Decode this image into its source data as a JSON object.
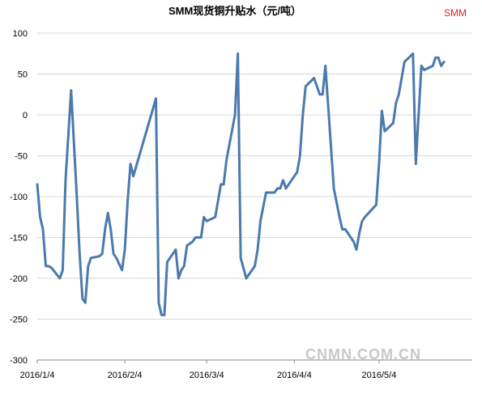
{
  "brand_label": "SMM",
  "watermark": "CNMN.COM.CN",
  "chart_data": {
    "type": "line",
    "title": "SMM现货铜升贴水（元/吨）",
    "xlabel": "",
    "ylabel": "",
    "ylim": [
      -300,
      100
    ],
    "yticks": [
      100,
      50,
      0,
      -50,
      -100,
      -150,
      -200,
      -250,
      -300
    ],
    "xlim": [
      "2016-01-04",
      "2016-06-06"
    ],
    "xticks": [
      "2016/1/4",
      "2016/2/4",
      "2016/3/4",
      "2016/4/4",
      "2016/5/4"
    ],
    "xtick_dates": [
      "2016-01-04",
      "2016-02-04",
      "2016-03-04",
      "2016-04-04",
      "2016-05-04"
    ],
    "grid": true,
    "legend": "none",
    "series_color": "#4a7aae",
    "series": [
      {
        "name": "",
        "points": [
          [
            "2016-01-04",
            -85
          ],
          [
            "2016-01-05",
            -125
          ],
          [
            "2016-01-06",
            -140
          ],
          [
            "2016-01-07",
            -185
          ],
          [
            "2016-01-08",
            -185
          ],
          [
            "2016-01-09",
            -187
          ],
          [
            "2016-01-12",
            -200
          ],
          [
            "2016-01-13",
            -190
          ],
          [
            "2016-01-14",
            -80
          ],
          [
            "2016-01-16",
            30
          ],
          [
            "2016-01-18",
            -100
          ],
          [
            "2016-01-19",
            -170
          ],
          [
            "2016-01-20",
            -225
          ],
          [
            "2016-01-21",
            -230
          ],
          [
            "2016-01-22",
            -185
          ],
          [
            "2016-01-23",
            -175
          ],
          [
            "2016-01-26",
            -173
          ],
          [
            "2016-01-27",
            -170
          ],
          [
            "2016-01-28",
            -140
          ],
          [
            "2016-01-29",
            -120
          ],
          [
            "2016-01-30",
            -140
          ],
          [
            "2016-01-31",
            -170
          ],
          [
            "2016-02-01",
            -175
          ],
          [
            "2016-02-03",
            -190
          ],
          [
            "2016-02-04",
            -165
          ],
          [
            "2016-02-05",
            -105
          ],
          [
            "2016-02-06",
            -60
          ],
          [
            "2016-02-07",
            -75
          ],
          [
            "2016-02-15",
            20
          ],
          [
            "2016-02-16",
            -230
          ],
          [
            "2016-02-17",
            -245
          ],
          [
            "2016-02-18",
            -245
          ],
          [
            "2016-02-19",
            -180
          ],
          [
            "2016-02-22",
            -165
          ],
          [
            "2016-02-23",
            -200
          ],
          [
            "2016-02-24",
            -190
          ],
          [
            "2016-02-25",
            -185
          ],
          [
            "2016-02-26",
            -160
          ],
          [
            "2016-02-28",
            -155
          ],
          [
            "2016-02-29",
            -150
          ],
          [
            "2016-03-02",
            -150
          ],
          [
            "2016-03-03",
            -125
          ],
          [
            "2016-03-04",
            -130
          ],
          [
            "2016-03-07",
            -125
          ],
          [
            "2016-03-09",
            -85
          ],
          [
            "2016-03-10",
            -85
          ],
          [
            "2016-03-11",
            -55
          ],
          [
            "2016-03-14",
            0
          ],
          [
            "2016-03-15",
            75
          ],
          [
            "2016-03-16",
            -175
          ],
          [
            "2016-03-18",
            -200
          ],
          [
            "2016-03-21",
            -185
          ],
          [
            "2016-03-22",
            -165
          ],
          [
            "2016-03-23",
            -130
          ],
          [
            "2016-03-25",
            -95
          ],
          [
            "2016-03-28",
            -95
          ],
          [
            "2016-03-29",
            -90
          ],
          [
            "2016-03-30",
            -90
          ],
          [
            "2016-03-31",
            -80
          ],
          [
            "2016-04-01",
            -90
          ],
          [
            "2016-04-04",
            -75
          ],
          [
            "2016-04-05",
            -70
          ],
          [
            "2016-04-06",
            -50
          ],
          [
            "2016-04-07",
            0
          ],
          [
            "2016-04-08",
            35
          ],
          [
            "2016-04-11",
            45
          ],
          [
            "2016-04-12",
            35
          ],
          [
            "2016-04-13",
            25
          ],
          [
            "2016-04-14",
            25
          ],
          [
            "2016-04-15",
            60
          ],
          [
            "2016-04-18",
            -90
          ],
          [
            "2016-04-20",
            -125
          ],
          [
            "2016-04-21",
            -140
          ],
          [
            "2016-04-22",
            -140
          ],
          [
            "2016-04-23",
            -145
          ],
          [
            "2016-04-25",
            -155
          ],
          [
            "2016-04-26",
            -165
          ],
          [
            "2016-04-27",
            -145
          ],
          [
            "2016-04-28",
            -130
          ],
          [
            "2016-04-29",
            -125
          ],
          [
            "2016-05-03",
            -110
          ],
          [
            "2016-05-04",
            -60
          ],
          [
            "2016-05-05",
            5
          ],
          [
            "2016-05-06",
            -20
          ],
          [
            "2016-05-09",
            -10
          ],
          [
            "2016-05-10",
            15
          ],
          [
            "2016-05-11",
            25
          ],
          [
            "2016-05-13",
            65
          ],
          [
            "2016-05-16",
            75
          ],
          [
            "2016-05-17",
            -60
          ],
          [
            "2016-05-19",
            60
          ],
          [
            "2016-05-20",
            55
          ],
          [
            "2016-05-23",
            60
          ],
          [
            "2016-05-24",
            70
          ],
          [
            "2016-05-25",
            70
          ],
          [
            "2016-05-26",
            60
          ],
          [
            "2016-05-27",
            65
          ]
        ]
      }
    ]
  }
}
